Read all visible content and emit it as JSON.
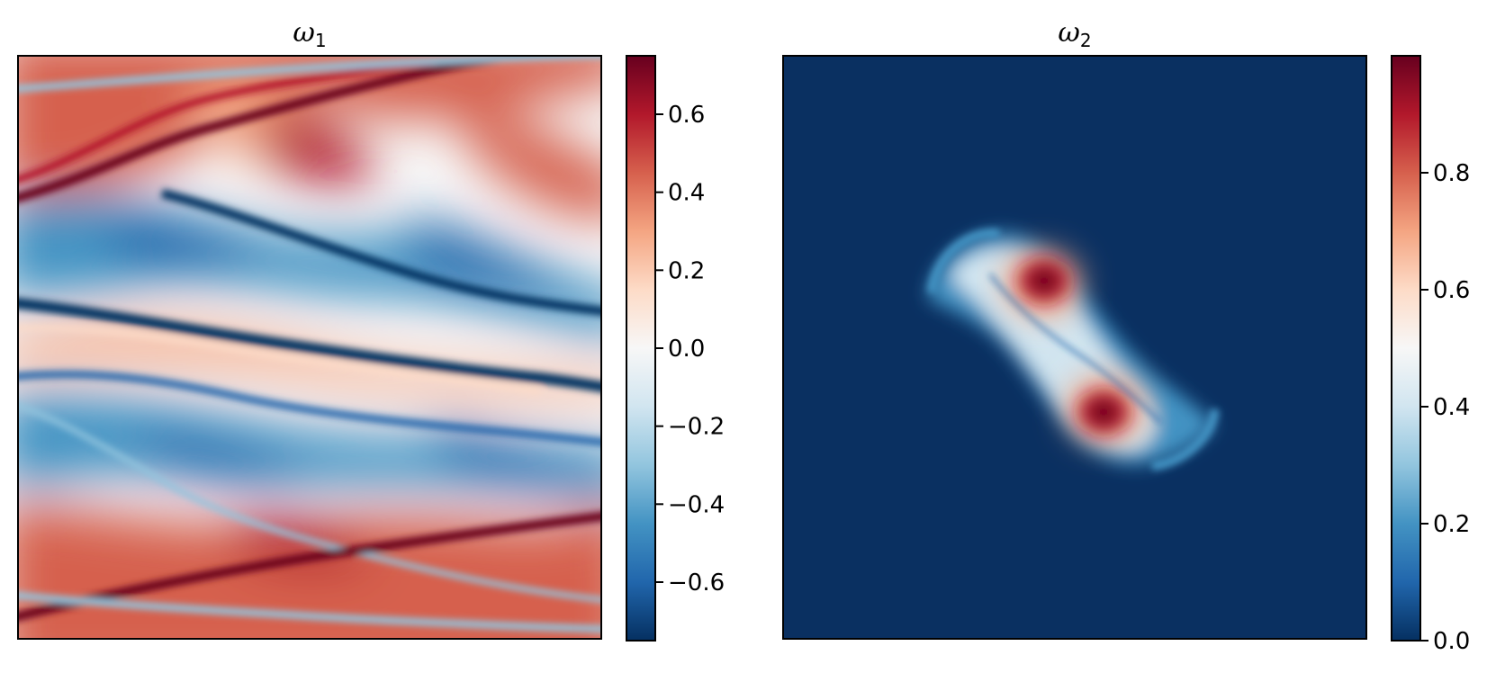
{
  "chart_data": [
    {
      "type": "heatmap",
      "title": "ω1",
      "title_symbol": "ω",
      "title_subscript": "1",
      "colormap": "RdBu_r",
      "colorbar": {
        "range": [
          -0.75,
          0.75
        ],
        "ticks": [
          -0.6,
          -0.4,
          -0.2,
          0.0,
          0.2,
          0.4,
          0.6
        ],
        "tick_labels": [
          "−0.6",
          "−0.4",
          "−0.2",
          "0.0",
          "0.2",
          "0.4",
          "0.6"
        ]
      },
      "axes_ticks_visible": false,
      "description_pattern": "shear-layer roll-up with two wavy vorticity bands"
    },
    {
      "type": "heatmap",
      "title": "ω2",
      "title_symbol": "ω",
      "title_subscript": "2",
      "colormap": "RdBu_r",
      "colorbar": {
        "range": [
          0.0,
          1.0
        ],
        "ticks": [
          0.0,
          0.2,
          0.4,
          0.6,
          0.8
        ],
        "tick_labels": [
          "0.0",
          "0.2",
          "0.4",
          "0.6",
          "0.8"
        ]
      },
      "axes_ticks_visible": false,
      "description_pattern": "two co-rotating patches merging into an S-shaped filament at the center"
    }
  ]
}
